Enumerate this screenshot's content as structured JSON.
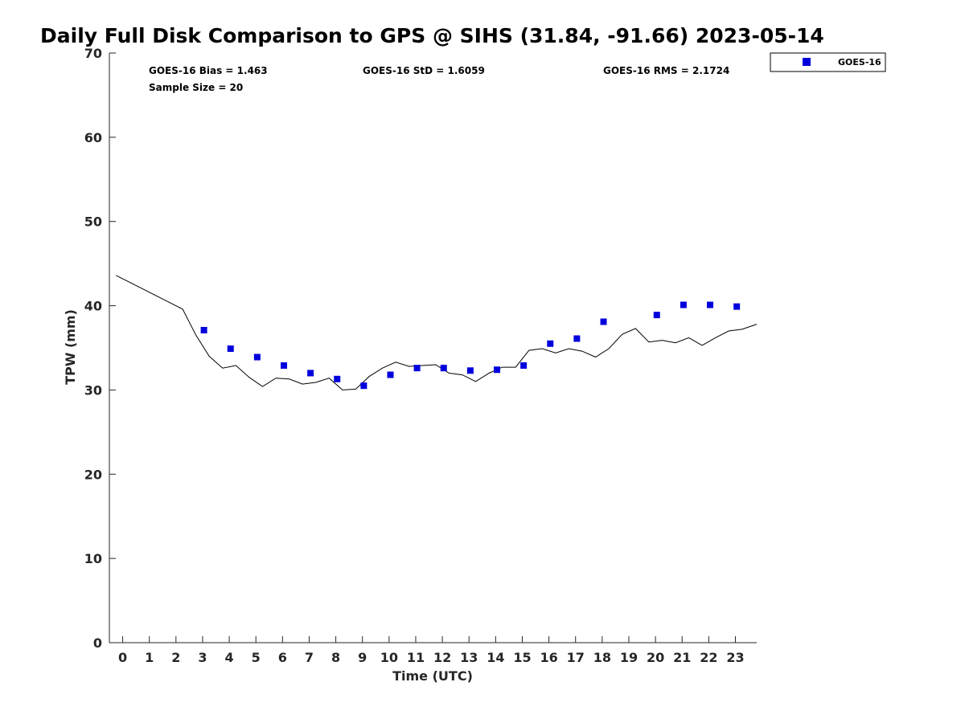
{
  "chart_data": {
    "type": "scatter",
    "title": "Daily Full Disk Comparison to GPS @ SIHS (31.84, -91.66) 2023-05-14",
    "xlabel": "Time (UTC)",
    "ylabel": "TPW (mm)",
    "xlim": [
      -0.5,
      23.8
    ],
    "ylim": [
      0,
      70
    ],
    "x_ticks": [
      0,
      1,
      2,
      3,
      4,
      5,
      6,
      7,
      8,
      9,
      10,
      11,
      12,
      13,
      14,
      15,
      16,
      17,
      18,
      19,
      20,
      21,
      22,
      23
    ],
    "y_ticks": [
      0,
      10,
      20,
      30,
      40,
      50,
      60,
      70
    ],
    "grid": false,
    "legend_position": "top-right",
    "stats": {
      "bias": "GOES-16 Bias = 1.463",
      "std": "GOES-16 StD = 1.6059",
      "rms": "GOES-16 RMS = 2.1724",
      "sample": "Sample Size = 20"
    },
    "series": [
      {
        "name": "GOES-16",
        "kind": "scatter",
        "color": "#0000dd",
        "marker": "square",
        "points": [
          [
            3.05,
            37.1
          ],
          [
            4.05,
            34.9
          ],
          [
            5.05,
            33.9
          ],
          [
            6.05,
            32.9
          ],
          [
            7.05,
            32.0
          ],
          [
            8.05,
            31.3
          ],
          [
            9.05,
            30.5
          ],
          [
            10.05,
            31.8
          ],
          [
            11.05,
            32.6
          ],
          [
            12.05,
            32.6
          ],
          [
            13.05,
            32.3
          ],
          [
            14.05,
            32.4
          ],
          [
            15.05,
            32.9
          ],
          [
            16.05,
            35.5
          ],
          [
            17.05,
            36.1
          ],
          [
            18.05,
            38.1
          ],
          [
            20.05,
            38.9
          ],
          [
            21.05,
            40.1
          ],
          [
            22.05,
            40.1
          ],
          [
            23.05,
            39.9
          ]
        ]
      },
      {
        "kind": "line",
        "color": "#000000",
        "points": [
          [
            -0.25,
            43.6
          ],
          [
            2.25,
            39.6
          ],
          [
            2.75,
            36.5
          ],
          [
            3.25,
            34.0
          ],
          [
            3.75,
            32.6
          ],
          [
            4.25,
            32.9
          ],
          [
            4.75,
            31.5
          ],
          [
            5.25,
            30.4
          ],
          [
            5.75,
            31.4
          ],
          [
            6.25,
            31.3
          ],
          [
            6.75,
            30.7
          ],
          [
            7.25,
            30.9
          ],
          [
            7.75,
            31.4
          ],
          [
            8.25,
            30.0
          ],
          [
            8.75,
            30.1
          ],
          [
            9.25,
            31.6
          ],
          [
            9.75,
            32.6
          ],
          [
            10.25,
            33.3
          ],
          [
            10.75,
            32.8
          ],
          [
            11.25,
            32.9
          ],
          [
            11.75,
            33.0
          ],
          [
            12.25,
            32.0
          ],
          [
            12.75,
            31.8
          ],
          [
            13.25,
            31.0
          ],
          [
            13.75,
            32.0
          ],
          [
            14.25,
            32.7
          ],
          [
            14.75,
            32.7
          ],
          [
            15.25,
            34.7
          ],
          [
            15.75,
            34.9
          ],
          [
            16.25,
            34.4
          ],
          [
            16.75,
            34.9
          ],
          [
            17.25,
            34.6
          ],
          [
            17.75,
            33.9
          ],
          [
            18.25,
            34.9
          ],
          [
            18.75,
            36.6
          ],
          [
            19.25,
            37.3
          ],
          [
            19.75,
            35.7
          ],
          [
            20.25,
            35.9
          ],
          [
            20.75,
            35.6
          ],
          [
            21.25,
            36.2
          ],
          [
            21.75,
            35.3
          ],
          [
            22.25,
            36.2
          ],
          [
            22.75,
            37.0
          ],
          [
            23.25,
            37.2
          ],
          [
            23.8,
            37.8
          ]
        ]
      }
    ]
  }
}
